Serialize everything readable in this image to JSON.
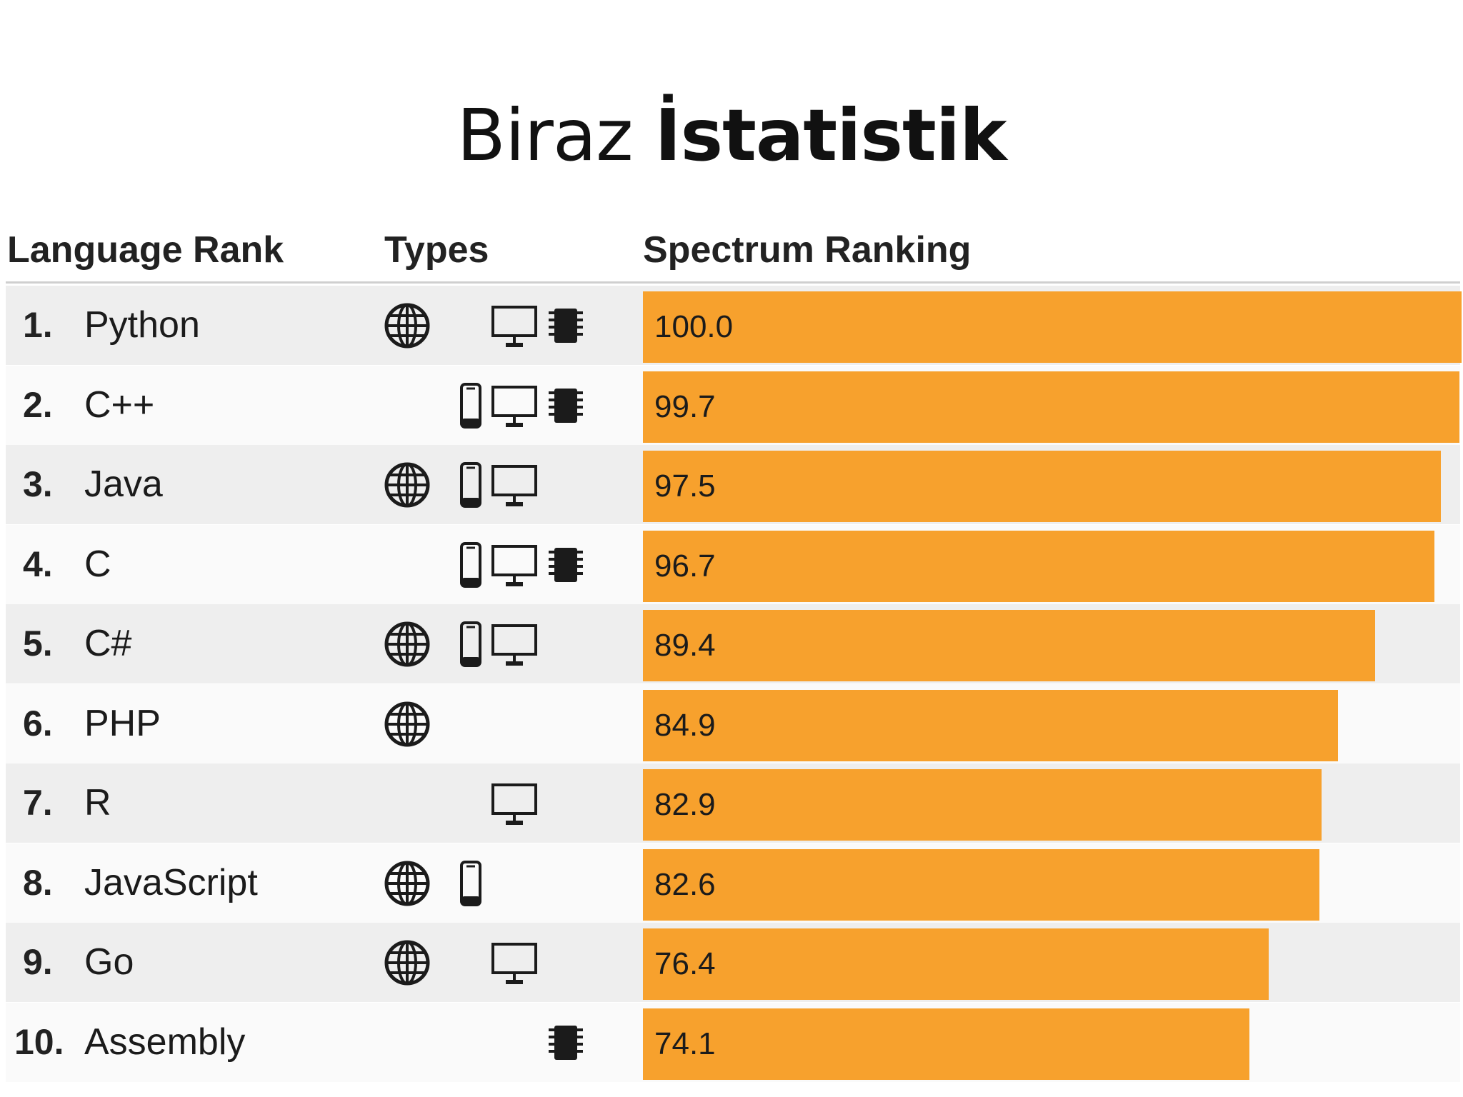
{
  "slide": {
    "title_regular": "Biraz ",
    "title_bold": "İstatistik"
  },
  "headers": {
    "rank": "Language Rank",
    "types": "Types",
    "ranking": "Spectrum Ranking"
  },
  "colors": {
    "bar": "#f7a12d",
    "row_shade": "#eeeeee",
    "row_plain": "#fafafa"
  },
  "chart_data": {
    "type": "bar",
    "orientation": "horizontal",
    "title": "Biraz İstatistik",
    "xlim": [
      0,
      100
    ],
    "categories": [
      "Python",
      "C++",
      "Java",
      "C",
      "C#",
      "PHP",
      "R",
      "JavaScript",
      "Go",
      "Assembly"
    ],
    "values": [
      100.0,
      99.7,
      97.5,
      96.7,
      89.4,
      84.9,
      82.9,
      82.6,
      76.4,
      74.1
    ],
    "rows": [
      {
        "rank": "1.",
        "name": "Python",
        "score": "100.0",
        "value": 100.0,
        "types": [
          "web",
          "desktop",
          "embedded"
        ]
      },
      {
        "rank": "2.",
        "name": "C++",
        "score": "99.7",
        "value": 99.7,
        "types": [
          "mobile",
          "desktop",
          "embedded"
        ]
      },
      {
        "rank": "3.",
        "name": "Java",
        "score": "97.5",
        "value": 97.5,
        "types": [
          "web",
          "mobile",
          "desktop"
        ]
      },
      {
        "rank": "4.",
        "name": "C",
        "score": "96.7",
        "value": 96.7,
        "types": [
          "mobile",
          "desktop",
          "embedded"
        ]
      },
      {
        "rank": "5.",
        "name": "C#",
        "score": "89.4",
        "value": 89.4,
        "types": [
          "web",
          "mobile",
          "desktop"
        ]
      },
      {
        "rank": "6.",
        "name": "PHP",
        "score": "84.9",
        "value": 84.9,
        "types": [
          "web"
        ]
      },
      {
        "rank": "7.",
        "name": "R",
        "score": "82.9",
        "value": 82.9,
        "types": [
          "desktop"
        ]
      },
      {
        "rank": "8.",
        "name": "JavaScript",
        "score": "82.6",
        "value": 82.6,
        "types": [
          "web",
          "mobile"
        ]
      },
      {
        "rank": "9.",
        "name": "Go",
        "score": "76.4",
        "value": 76.4,
        "types": [
          "web",
          "desktop"
        ]
      },
      {
        "rank": "10.",
        "name": "Assembly",
        "score": "74.1",
        "value": 74.1,
        "types": [
          "embedded"
        ]
      }
    ]
  }
}
